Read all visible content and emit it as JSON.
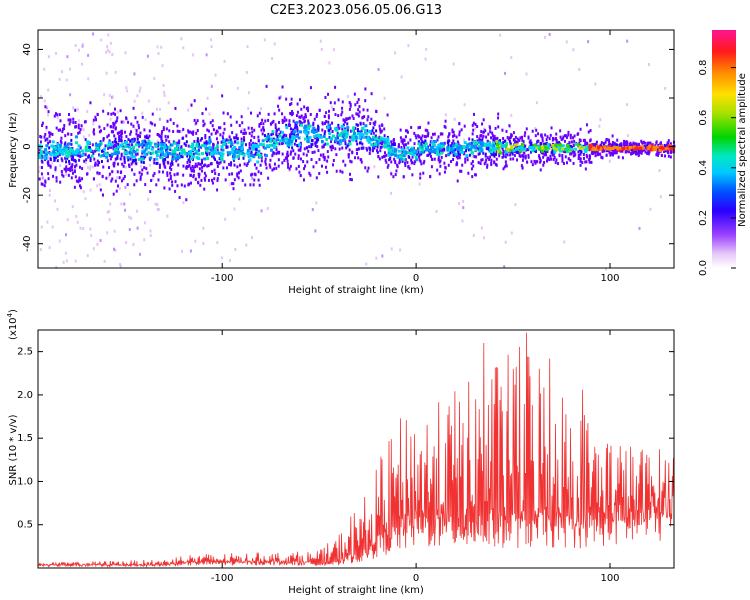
{
  "title": "C2E3.2023.056.05.06.G13",
  "chart_data": [
    {
      "type": "heatmap",
      "description_hidden": true,
      "xlabel": "Height of straight line (km)",
      "ylabel": "Frequency (Hz)",
      "xlim": [
        -195,
        133
      ],
      "ylim": [
        -50,
        48
      ],
      "xticks": [
        -100,
        0,
        100
      ],
      "xtick_labels": [
        "-100",
        "0",
        "100"
      ],
      "yticks": [
        -40,
        -20,
        0,
        20,
        40
      ],
      "ytick_labels": [
        "-40",
        "-20",
        "0",
        "20",
        "40"
      ],
      "colorbar": {
        "label": "Normalized spectral amplitude",
        "range": [
          0,
          0.95
        ],
        "ticks": [
          0.0,
          0.2,
          0.4,
          0.6,
          0.8
        ],
        "tick_labels": [
          "0.0",
          "0.2",
          "0.4",
          "0.6",
          "0.8"
        ],
        "colors": [
          "#ffffff",
          "#d6a8f2",
          "#6a00ff",
          "#0000ff",
          "#00b4ff",
          "#00e5c8",
          "#00d400",
          "#a8e000",
          "#ffe000",
          "#ff8c00",
          "#ff1a1a",
          "#ff1493"
        ]
      }
    },
    {
      "type": "line",
      "xlabel": "Height of straight line (km)",
      "ylabel": "SNR (10 * v/v)",
      "multiplier_label": "(x10",
      "multiplier_exp": "4",
      "multiplier_close": ")",
      "xlim": [
        -195,
        133
      ],
      "ylim": [
        0,
        2.75
      ],
      "xticks": [
        -100,
        0,
        100
      ],
      "xtick_labels": [
        "-100",
        "0",
        "100"
      ],
      "yticks": [
        0.5,
        1.0,
        1.5,
        2.0,
        2.5
      ],
      "ytick_labels": [
        "0.5",
        "1.0",
        "1.5",
        "2.0",
        "2.5"
      ],
      "color": "#f03232",
      "envelope": {
        "x": [
          -195,
          -130,
          -120,
          -80,
          -50,
          -40,
          -35,
          -25,
          -20,
          -10,
          0,
          10,
          20,
          30,
          40,
          50,
          60,
          70,
          80,
          90,
          100,
          110,
          120,
          133
        ],
        "baseline": [
          0.03,
          0.03,
          0.05,
          0.06,
          0.05,
          0.05,
          0.1,
          0.15,
          0.25,
          0.35,
          0.45,
          0.45,
          0.45,
          0.45,
          0.45,
          0.45,
          0.45,
          0.45,
          0.45,
          0.45,
          0.5,
          0.5,
          0.55,
          0.6
        ],
        "max": [
          0.06,
          0.1,
          0.16,
          0.18,
          0.2,
          0.4,
          0.6,
          0.9,
          1.2,
          1.7,
          1.9,
          1.9,
          2.1,
          2.2,
          2.4,
          2.55,
          2.7,
          2.3,
          2.0,
          1.8,
          1.6,
          1.45,
          1.4,
          1.4
        ]
      },
      "peaks": [
        {
          "x": 57,
          "y": 2.72
        },
        {
          "x": 35,
          "y": 2.6
        },
        {
          "x": 69,
          "y": 2.42
        },
        {
          "x": 50,
          "y": 2.3
        },
        {
          "x": 86,
          "y": 2.06
        }
      ]
    }
  ]
}
